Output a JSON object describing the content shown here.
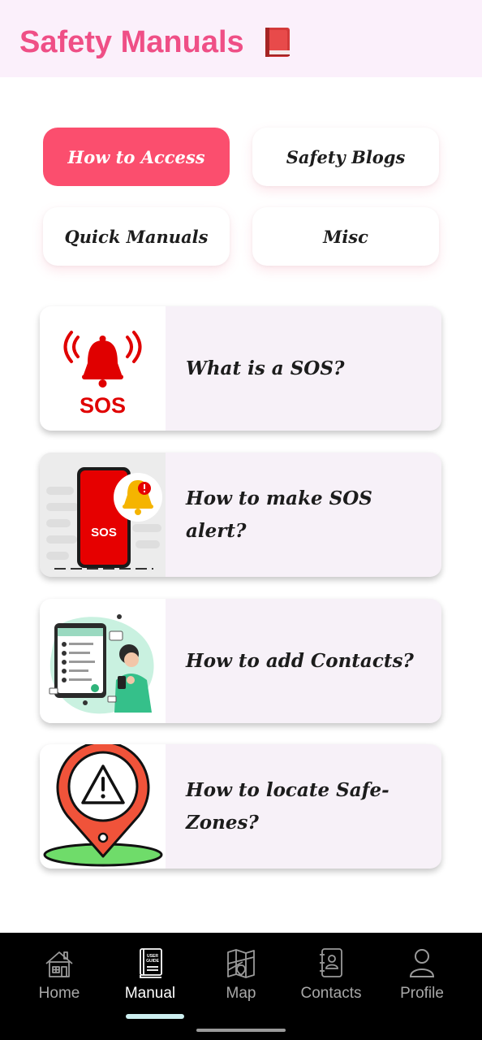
{
  "header": {
    "title": "Safety Manuals",
    "icon": "red-book-icon"
  },
  "tabs": [
    {
      "label": "How to Access",
      "active": true
    },
    {
      "label": "Safety Blogs",
      "active": false
    },
    {
      "label": "Quick Manuals",
      "active": false
    },
    {
      "label": "Misc",
      "active": false
    }
  ],
  "cards": [
    {
      "title": "What is a SOS?",
      "thumb_text": "SOS",
      "icon": "sos-alarm-icon"
    },
    {
      "title": "How to make SOS alert?",
      "thumb_text": "SOS",
      "icon": "phone-sos-bell-icon"
    },
    {
      "title": "How to add Contacts?",
      "icon": "contacts-illustration-icon"
    },
    {
      "title": "How to locate Safe-Zones?",
      "icon": "warning-location-pin-icon"
    }
  ],
  "nav": {
    "items": [
      {
        "label": "Home",
        "icon": "home-icon",
        "active": false
      },
      {
        "label": "Manual",
        "icon": "user-guide-icon",
        "active": true,
        "icon_text_top": "USER",
        "icon_text_bottom": "GUIDE"
      },
      {
        "label": "Map",
        "icon": "map-icon",
        "active": false
      },
      {
        "label": "Contacts",
        "icon": "contacts-book-icon",
        "active": false
      },
      {
        "label": "Profile",
        "icon": "profile-icon",
        "active": false
      }
    ]
  },
  "colors": {
    "accent": "#fb4e6e",
    "title_pink": "#ef4f86",
    "header_bg": "#fbf0fb",
    "card_bg": "#f7f1f8",
    "nav_bg": "#000000",
    "sos_red": "#e00000"
  }
}
